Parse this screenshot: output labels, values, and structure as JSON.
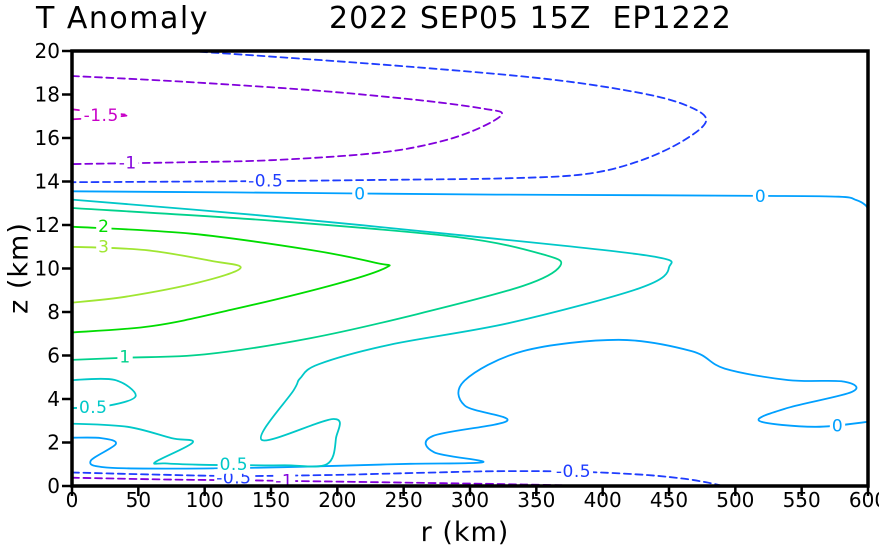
{
  "title": {
    "left": "T Anomaly",
    "right": "2022 SEP05 15Z  EP1222"
  },
  "chart_data": {
    "type": "contour",
    "title_left": "T Anomaly",
    "title_right": "2022 SEP05 15Z  EP1222",
    "xlabel": "r (km)",
    "ylabel": "z (km)",
    "xlim": [
      0,
      600
    ],
    "ylim": [
      0,
      20
    ],
    "xticks": [
      0,
      50,
      100,
      150,
      200,
      250,
      300,
      350,
      400,
      450,
      500,
      550,
      600
    ],
    "yticks": [
      0,
      2,
      4,
      6,
      8,
      10,
      12,
      14,
      16,
      18,
      20
    ],
    "grid": false,
    "frame_color": "#000000",
    "background_color": "#ffffff",
    "contour_levels": [
      -1.5,
      -1,
      -0.5,
      0,
      0.5,
      1,
      2,
      3
    ],
    "contours": [
      {
        "level": -1.5,
        "text": "-1.5",
        "color": "#c800c8",
        "dashed": true,
        "segments": [
          [
            [
              0,
              17.32
            ],
            [
              20,
              17.18
            ],
            [
              42,
              17.05
            ],
            [
              20,
              16.93
            ],
            [
              0,
              16.86
            ]
          ]
        ],
        "labels": [
          {
            "x": 22,
            "z": 17.05
          }
        ]
      },
      {
        "level": -1,
        "text": "-1",
        "color": "#8200dc",
        "dashed": true,
        "segments": [
          [
            [
              0,
              18.85
            ],
            [
              80,
              18.6
            ],
            [
              180,
              18.2
            ],
            [
              260,
              17.75
            ],
            [
              310,
              17.35
            ],
            [
              324,
              17.08
            ],
            [
              303,
              16.35
            ],
            [
              272,
              15.75
            ],
            [
              228,
              15.3
            ],
            [
              150,
              14.98
            ],
            [
              80,
              14.88
            ],
            [
              0,
              14.8
            ]
          ],
          [
            [
              0,
              0.38
            ],
            [
              70,
              0.3
            ],
            [
              130,
              0.26
            ],
            [
              200,
              0.2
            ],
            [
              280,
              0.13
            ],
            [
              340,
              0.07
            ],
            [
              388,
              0.01
            ]
          ]
        ],
        "labels": [
          {
            "x": 42,
            "z": 14.88
          },
          {
            "x": 160,
            "z": 0.24
          }
        ]
      },
      {
        "level": -0.5,
        "text": "-0.5",
        "color": "#1e3cff",
        "dashed": true,
        "segments": [
          [
            [
              88,
              20.0
            ],
            [
              160,
              19.7
            ],
            [
              260,
              19.25
            ],
            [
              360,
              18.7
            ],
            [
              430,
              18.05
            ],
            [
              465,
              17.45
            ],
            [
              478,
              16.78
            ],
            [
              460,
              15.85
            ],
            [
              428,
              14.95
            ],
            [
              388,
              14.35
            ],
            [
              330,
              14.15
            ],
            [
              240,
              14.08
            ],
            [
              144,
              14.02
            ],
            [
              0,
              13.97
            ]
          ],
          [
            [
              0,
              0.62
            ],
            [
              60,
              0.53
            ],
            [
              122,
              0.46
            ],
            [
              190,
              0.5
            ],
            [
              260,
              0.6
            ],
            [
              320,
              0.68
            ],
            [
              378,
              0.66
            ],
            [
              425,
              0.54
            ],
            [
              458,
              0.36
            ],
            [
              478,
              0.17
            ],
            [
              490,
              0.01
            ]
          ]
        ],
        "labels": [
          {
            "x": 146,
            "z": 14.05
          },
          {
            "x": 122,
            "z": 0.4
          },
          {
            "x": 378,
            "z": 0.68
          }
        ]
      },
      {
        "level": 0,
        "text": "0",
        "color": "#00a0ff",
        "dashed": false,
        "segments": [
          [
            [
              0,
              13.55
            ],
            [
              120,
              13.5
            ],
            [
              217,
              13.45
            ],
            [
              320,
              13.4
            ],
            [
              430,
              13.37
            ],
            [
              519,
              13.34
            ],
            [
              578,
              13.3
            ],
            [
              591,
              13.15
            ],
            [
              598,
              12.92
            ],
            [
              600,
              12.72
            ]
          ],
          [
            [
              0,
              2.22
            ],
            [
              22,
              2.2
            ],
            [
              33,
              1.93
            ],
            [
              14,
              1.15
            ],
            [
              26,
              0.85
            ],
            [
              80,
              0.8
            ],
            [
              140,
              0.84
            ],
            [
              200,
              0.93
            ],
            [
              255,
              1.02
            ],
            [
              310,
              1.1
            ],
            [
              273,
              1.55
            ],
            [
              272,
              2.3
            ],
            [
              328,
              3.0
            ],
            [
              296,
              3.7
            ],
            [
              296,
              4.85
            ],
            [
              340,
              6.2
            ],
            [
              412,
              6.72
            ],
            [
              467,
              6.2
            ],
            [
              492,
              5.4
            ],
            [
              540,
              4.87
            ],
            [
              582,
              4.8
            ],
            [
              588,
              4.33
            ],
            [
              540,
              3.6
            ],
            [
              518,
              3.0
            ],
            [
              560,
              2.72
            ],
            [
              600,
              2.95
            ]
          ]
        ],
        "labels": [
          {
            "x": 217,
            "z": 13.45
          },
          {
            "x": 519,
            "z": 13.34
          },
          {
            "x": 577,
            "z": 2.78
          }
        ]
      },
      {
        "level": 0.5,
        "text": "0.5",
        "color": "#00c8c8",
        "dashed": false,
        "segments": [
          [
            [
              0,
              4.87
            ],
            [
              32,
              4.88
            ],
            [
              48,
              4.14
            ],
            [
              28,
              3.7
            ],
            [
              0,
              3.58
            ]
          ],
          [
            [
              0,
              2.87
            ],
            [
              42,
              2.72
            ],
            [
              75,
              2.2
            ],
            [
              91,
              2.0
            ],
            [
              63,
              1.11
            ],
            [
              70,
              1.04
            ],
            [
              95,
              0.98
            ],
            [
              122,
              0.96
            ],
            [
              160,
              0.95
            ],
            [
              192,
              1.0
            ],
            [
              199,
              2.2
            ],
            [
              197,
              3.08
            ],
            [
              143,
              2.12
            ],
            [
              167,
              4.4
            ],
            [
              172,
              4.95
            ],
            [
              186,
              5.6
            ],
            [
              240,
              6.5
            ],
            [
              330,
              7.5
            ],
            [
              428,
              9.1
            ],
            [
              450,
              10.05
            ],
            [
              433,
              10.6
            ],
            [
              290,
              11.55
            ],
            [
              140,
              12.45
            ],
            [
              0,
              13.17
            ]
          ]
        ],
        "labels": [
          {
            "x": 16,
            "z": 3.64
          },
          {
            "x": 122,
            "z": 1.02
          }
        ]
      },
      {
        "level": 1,
        "text": "1",
        "color": "#00d28c",
        "dashed": false,
        "segments": [
          [
            [
              0,
              12.78
            ],
            [
              150,
              12.2
            ],
            [
              290,
              11.45
            ],
            [
              355,
              10.65
            ],
            [
              368,
              10.12
            ],
            [
              340,
              9.2
            ],
            [
              260,
              7.9
            ],
            [
              180,
              6.8
            ],
            [
              100,
              6.05
            ],
            [
              40,
              5.9
            ],
            [
              0,
              5.8
            ]
          ]
        ],
        "labels": [
          {
            "x": 40,
            "z": 5.95
          }
        ]
      },
      {
        "level": 2,
        "text": "2",
        "color": "#00dc00",
        "dashed": false,
        "segments": [
          [
            [
              0,
              11.92
            ],
            [
              90,
              11.6
            ],
            [
              180,
              10.85
            ],
            [
              230,
              10.25
            ],
            [
              237,
              10.05
            ],
            [
              200,
              9.3
            ],
            [
              120,
              8.1
            ],
            [
              60,
              7.35
            ],
            [
              0,
              7.06
            ]
          ]
        ],
        "labels": [
          {
            "x": 24,
            "z": 11.95
          }
        ]
      },
      {
        "level": 3,
        "text": "3",
        "color": "#a0e632",
        "dashed": false,
        "segments": [
          [
            [
              0,
              11.0
            ],
            [
              55,
              10.85
            ],
            [
              105,
              10.35
            ],
            [
              127,
              10.02
            ],
            [
              95,
              9.35
            ],
            [
              40,
              8.7
            ],
            [
              0,
              8.43
            ]
          ]
        ],
        "labels": [
          {
            "x": 24,
            "z": 11.0
          }
        ]
      }
    ]
  }
}
